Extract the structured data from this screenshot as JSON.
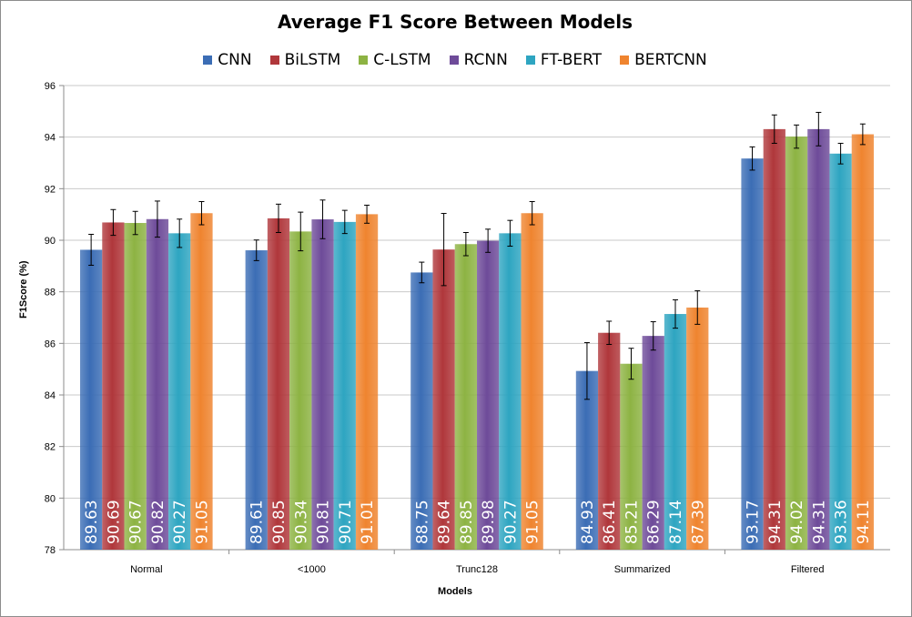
{
  "chart_data": {
    "type": "bar",
    "title": "Average F1 Score Between Models",
    "xlabel": "Models",
    "ylabel": "F1Score (%)",
    "ylim": [
      78,
      96
    ],
    "yticks": [
      78,
      80,
      82,
      84,
      86,
      88,
      90,
      92,
      94,
      96
    ],
    "ytick_labels": [
      "78",
      "80",
      "82",
      "84",
      "86",
      "88",
      "90",
      "92",
      "94",
      "96"
    ],
    "grid": true,
    "legend_position": "top",
    "categories": [
      "Normal",
      "<1000",
      "Trunc128",
      "Summarized",
      "Filtered"
    ],
    "series": [
      {
        "name": "CNN",
        "color": "#3b6db5",
        "values": [
          89.63,
          89.61,
          88.75,
          84.93,
          93.17
        ],
        "labels": [
          "89.63",
          "89.61",
          "88.75",
          "84.93",
          "93.17"
        ],
        "errors": [
          0.6,
          0.4,
          0.4,
          1.1,
          0.45
        ]
      },
      {
        "name": "BiLSTM",
        "color": "#b0373b",
        "values": [
          90.69,
          90.85,
          89.64,
          86.41,
          94.31
        ],
        "labels": [
          "90.69",
          "90.85",
          "89.64",
          "86.41",
          "94.31"
        ],
        "errors": [
          0.5,
          0.55,
          1.4,
          0.45,
          0.55
        ]
      },
      {
        "name": "C-LSTM",
        "color": "#8db343",
        "values": [
          90.67,
          90.34,
          89.85,
          85.21,
          94.02
        ],
        "labels": [
          "90.67",
          "90.34",
          "89.85",
          "85.21",
          "94.02"
        ],
        "errors": [
          0.45,
          0.75,
          0.45,
          0.6,
          0.45
        ]
      },
      {
        "name": "RCNN",
        "color": "#6e4b99",
        "values": [
          90.82,
          90.81,
          89.98,
          86.29,
          94.31
        ],
        "labels": [
          "90.82",
          "90.81",
          "89.98",
          "86.29",
          "94.31"
        ],
        "errors": [
          0.7,
          0.75,
          0.45,
          0.55,
          0.65
        ]
      },
      {
        "name": "FT-BERT",
        "color": "#2ea5c1",
        "values": [
          90.27,
          90.71,
          90.27,
          87.14,
          93.36
        ],
        "labels": [
          "90.27",
          "90.71",
          "90.27",
          "87.14",
          "93.36"
        ],
        "errors": [
          0.55,
          0.45,
          0.5,
          0.55,
          0.4
        ]
      },
      {
        "name": "BERTCNN",
        "color": "#ef842f",
        "values": [
          91.05,
          91.01,
          91.05,
          87.39,
          94.11
        ],
        "labels": [
          "91.05",
          "91.01",
          "91.05",
          "87.39",
          "94.11"
        ],
        "errors": [
          0.45,
          0.35,
          0.45,
          0.65,
          0.4
        ]
      }
    ]
  }
}
